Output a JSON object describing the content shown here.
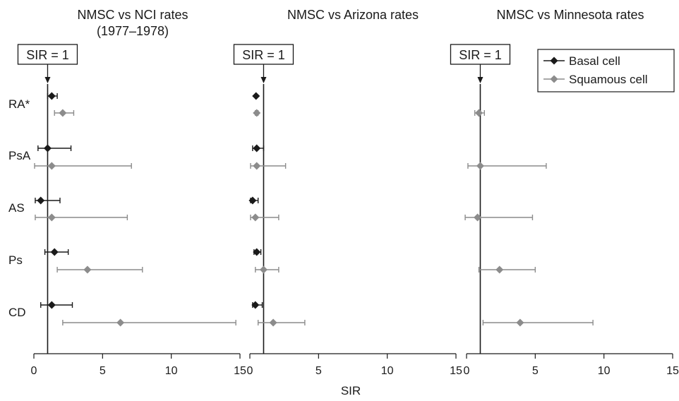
{
  "xlabel": "SIR",
  "legend": {
    "basal": "Basal cell",
    "squamous": "Squamous cell",
    "colors": {
      "basal": "#1a1a1a",
      "squamous": "#8c8c8c"
    }
  },
  "chart_data": [
    {
      "type": "forest",
      "title": "NMSC vs NCI rates",
      "subtitle": "(1977–1978)",
      "reference_label": "SIR = 1",
      "reference_value": 1,
      "xlim": [
        0,
        15
      ],
      "xticks": [
        0,
        5,
        10,
        15
      ],
      "grid": false,
      "categories": [
        "RA*",
        "PsA",
        "AS",
        "Ps",
        "CD"
      ],
      "series": [
        {
          "name": "Basal cell",
          "color": "#1a1a1a",
          "marker": "diamond",
          "points": [
            {
              "category": "RA*",
              "est": 1.3,
              "lo": 1.0,
              "hi": 1.7
            },
            {
              "category": "PsA",
              "est": 1.0,
              "lo": 0.3,
              "hi": 2.7
            },
            {
              "category": "AS",
              "est": 0.5,
              "lo": 0.1,
              "hi": 1.9
            },
            {
              "category": "Ps",
              "est": 1.5,
              "lo": 0.8,
              "hi": 2.5
            },
            {
              "category": "CD",
              "est": 1.3,
              "lo": 0.5,
              "hi": 2.8
            }
          ]
        },
        {
          "name": "Squamous cell",
          "color": "#8c8c8c",
          "marker": "diamond",
          "points": [
            {
              "category": "RA*",
              "est": 2.1,
              "lo": 1.5,
              "hi": 2.9
            },
            {
              "category": "PsA",
              "est": 1.3,
              "lo": 0.05,
              "hi": 7.1
            },
            {
              "category": "AS",
              "est": 1.3,
              "lo": 0.1,
              "hi": 6.8
            },
            {
              "category": "Ps",
              "est": 3.9,
              "lo": 1.7,
              "hi": 7.9
            },
            {
              "category": "CD",
              "est": 6.3,
              "lo": 2.1,
              "hi": 14.7
            }
          ]
        }
      ]
    },
    {
      "type": "forest",
      "title": "NMSC vs Arizona rates",
      "reference_label": "SIR = 1",
      "reference_value": 1,
      "xlim": [
        0,
        15
      ],
      "xticks": [
        0,
        5,
        10,
        15
      ],
      "grid": false,
      "categories": [
        "RA*",
        "PsA",
        "AS",
        "Ps",
        "CD"
      ],
      "series": [
        {
          "name": "Basal cell",
          "color": "#1a1a1a",
          "marker": "diamond",
          "points": [
            {
              "category": "RA*",
              "est": 0.45,
              "lo": 0.4,
              "hi": 0.5
            },
            {
              "category": "PsA",
              "est": 0.5,
              "lo": 0.2,
              "hi": 1.0
            },
            {
              "category": "AS",
              "est": 0.2,
              "lo": 0.05,
              "hi": 0.6
            },
            {
              "category": "Ps",
              "est": 0.5,
              "lo": 0.3,
              "hi": 0.8
            },
            {
              "category": "CD",
              "est": 0.4,
              "lo": 0.2,
              "hi": 0.9
            }
          ]
        },
        {
          "name": "Squamous cell",
          "color": "#8c8c8c",
          "marker": "diamond",
          "points": [
            {
              "category": "RA*",
              "est": 0.5,
              "lo": 0.4,
              "hi": 0.6
            },
            {
              "category": "PsA",
              "est": 0.5,
              "lo": 0.05,
              "hi": 2.6
            },
            {
              "category": "AS",
              "est": 0.4,
              "lo": 0.05,
              "hi": 2.1
            },
            {
              "category": "Ps",
              "est": 1.0,
              "lo": 0.4,
              "hi": 2.1
            },
            {
              "category": "CD",
              "est": 1.7,
              "lo": 0.6,
              "hi": 4.0
            }
          ]
        }
      ]
    },
    {
      "type": "forest",
      "title": "NMSC vs Minnesota rates",
      "reference_label": "SIR = 1",
      "reference_value": 1,
      "xlim": [
        0,
        15
      ],
      "xticks": [
        0,
        5,
        10,
        15
      ],
      "grid": false,
      "categories": [
        "RA*",
        "PsA",
        "AS",
        "Ps",
        "CD"
      ],
      "series": [
        {
          "name": "Squamous cell",
          "color": "#8c8c8c",
          "marker": "diamond",
          "points": [
            {
              "category": "RA*",
              "est": 0.9,
              "lo": 0.6,
              "hi": 1.3
            },
            {
              "category": "PsA",
              "est": 1.0,
              "lo": 0.1,
              "hi": 5.8
            },
            {
              "category": "AS",
              "est": 0.8,
              "lo": -0.1,
              "hi": 4.8
            },
            {
              "category": "Ps",
              "est": 2.4,
              "lo": 0.9,
              "hi": 5.0
            },
            {
              "category": "CD",
              "est": 3.9,
              "lo": 1.2,
              "hi": 9.2
            }
          ]
        }
      ]
    }
  ]
}
